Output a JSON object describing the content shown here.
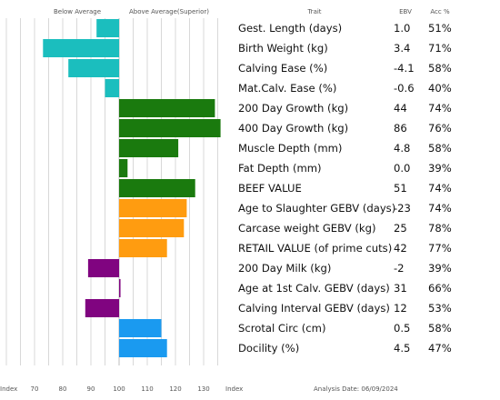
{
  "header": {
    "below_average": "Below Average",
    "above_average": "Above Average(Superior)",
    "trait": "Trait",
    "ebv": "EBV",
    "acc": "Acc %"
  },
  "footer": {
    "index_left": "Index",
    "index_right": "Index",
    "analysis_date": "Analysis Date: 06/09/2024"
  },
  "colors": {
    "calving": "#1BBEBE",
    "growth": "#1A7A0E",
    "carcase": "#FF9C10",
    "fertility": "#800480",
    "temperament": "#1A9AF0",
    "grid": "#d8d8d8"
  },
  "chart_data": {
    "type": "bar",
    "orientation": "horizontal",
    "baseline": 100,
    "xlim": [
      60,
      140
    ],
    "xticks": [
      70,
      80,
      90,
      100,
      110,
      120,
      130
    ],
    "xlabel": "Index",
    "grid": true,
    "rows": [
      {
        "trait": "Gest. Length (days)",
        "index": 92,
        "ebv": "1.0",
        "acc": "51%",
        "group": "calving"
      },
      {
        "trait": "Birth Weight (kg)",
        "index": 73,
        "ebv": "3.4",
        "acc": "71%",
        "group": "calving"
      },
      {
        "trait": "Calving Ease (%)",
        "index": 82,
        "ebv": "-4.1",
        "acc": "58%",
        "group": "calving"
      },
      {
        "trait": "Mat.Calv. Ease (%)",
        "index": 95,
        "ebv": "-0.6",
        "acc": "40%",
        "group": "calving"
      },
      {
        "trait": "200 Day Growth (kg)",
        "index": 134,
        "ebv": "44",
        "acc": "74%",
        "group": "growth"
      },
      {
        "trait": "400 Day Growth (kg)",
        "index": 136,
        "ebv": "86",
        "acc": "76%",
        "group": "growth"
      },
      {
        "trait": "Muscle Depth (mm)",
        "index": 121,
        "ebv": "4.8",
        "acc": "58%",
        "group": "growth"
      },
      {
        "trait": "Fat Depth (mm)",
        "index": 103,
        "ebv": "0.0",
        "acc": "39%",
        "group": "growth"
      },
      {
        "trait": "BEEF VALUE",
        "index": 127,
        "ebv": "51",
        "acc": "74%",
        "group": "growth"
      },
      {
        "trait": "Age to Slaughter GEBV (days)",
        "index": 124,
        "ebv": "-23",
        "acc": "74%",
        "group": "carcase"
      },
      {
        "trait": "Carcase weight GEBV (kg)",
        "index": 123,
        "ebv": "25",
        "acc": "78%",
        "group": "carcase"
      },
      {
        "trait": "RETAIL VALUE (of prime cuts)",
        "index": 117,
        "ebv": "42",
        "acc": "77%",
        "group": "carcase"
      },
      {
        "trait": "200 Day Milk (kg)",
        "index": 89,
        "ebv": "-2",
        "acc": "39%",
        "group": "fertility"
      },
      {
        "trait": "Age at 1st Calv. GEBV (days)",
        "index": 100.5,
        "ebv": "31",
        "acc": "66%",
        "group": "fertility"
      },
      {
        "trait": "Calving Interval GEBV (days)",
        "index": 88,
        "ebv": "12",
        "acc": "53%",
        "group": "fertility"
      },
      {
        "trait": "Scrotal Circ (cm)",
        "index": 115,
        "ebv": "0.5",
        "acc": "58%",
        "group": "temperament"
      },
      {
        "trait": "Docility (%)",
        "index": 117,
        "ebv": "4.5",
        "acc": "47%",
        "group": "temperament"
      }
    ]
  }
}
